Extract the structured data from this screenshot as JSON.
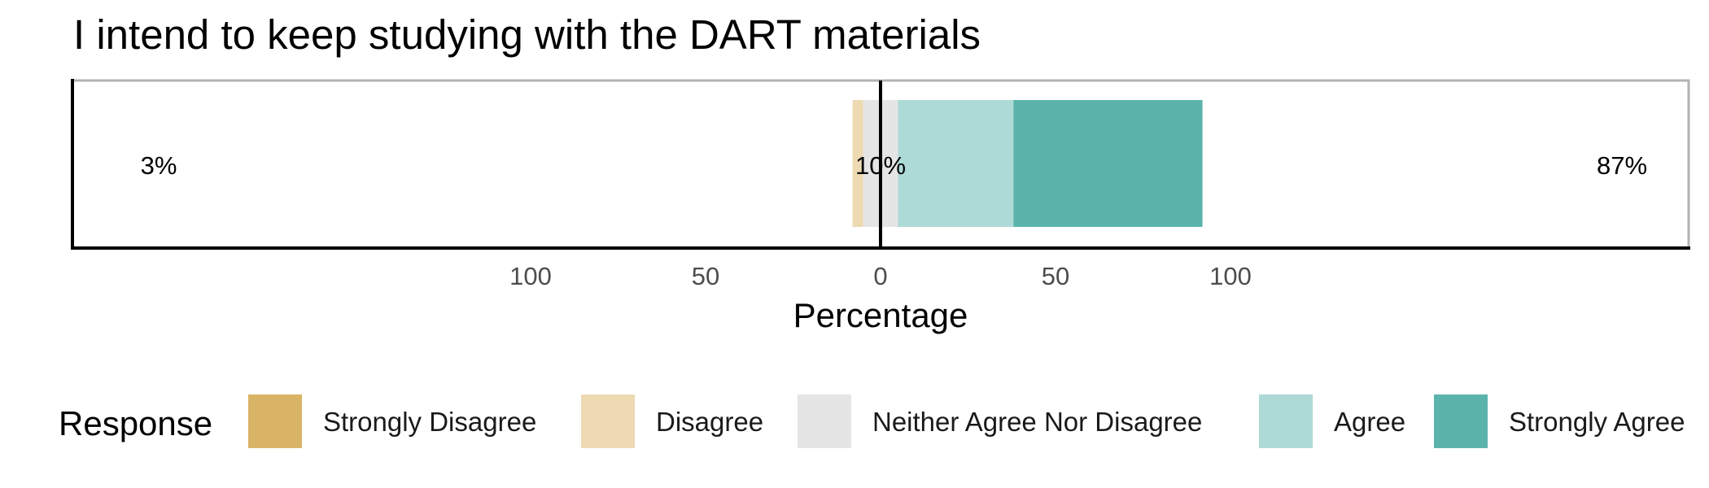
{
  "chart_data": {
    "type": "bar",
    "orientation": "horizontal-diverging",
    "title": "I intend to keep studying with the DART materials",
    "xlabel": "Percentage",
    "ylabel": "",
    "xlim": [
      -100,
      100
    ],
    "x_ticks": [
      -100,
      -50,
      0,
      50,
      100
    ],
    "x_tick_labels": [
      "100",
      "50",
      "0",
      "50",
      "100"
    ],
    "categories": [
      "I intend to keep studying with the DART materials"
    ],
    "series": [
      {
        "name": "Strongly Disagree",
        "values": [
          0
        ],
        "color": "#D9B366"
      },
      {
        "name": "Disagree",
        "values": [
          3
        ],
        "color": "#EDD9B2"
      },
      {
        "name": "Neither Agree Nor Disagree",
        "values": [
          10
        ],
        "color": "#E5E5E5"
      },
      {
        "name": "Agree",
        "values": [
          33
        ],
        "color": "#ADDAD6"
      },
      {
        "name": "Strongly Agree",
        "values": [
          54
        ],
        "color": "#5BB4AC"
      }
    ],
    "summary_labels": {
      "low": "3%",
      "neutral": "10%",
      "high": "87%"
    },
    "legend": {
      "title": "Response",
      "position": "bottom"
    },
    "grid": false
  }
}
